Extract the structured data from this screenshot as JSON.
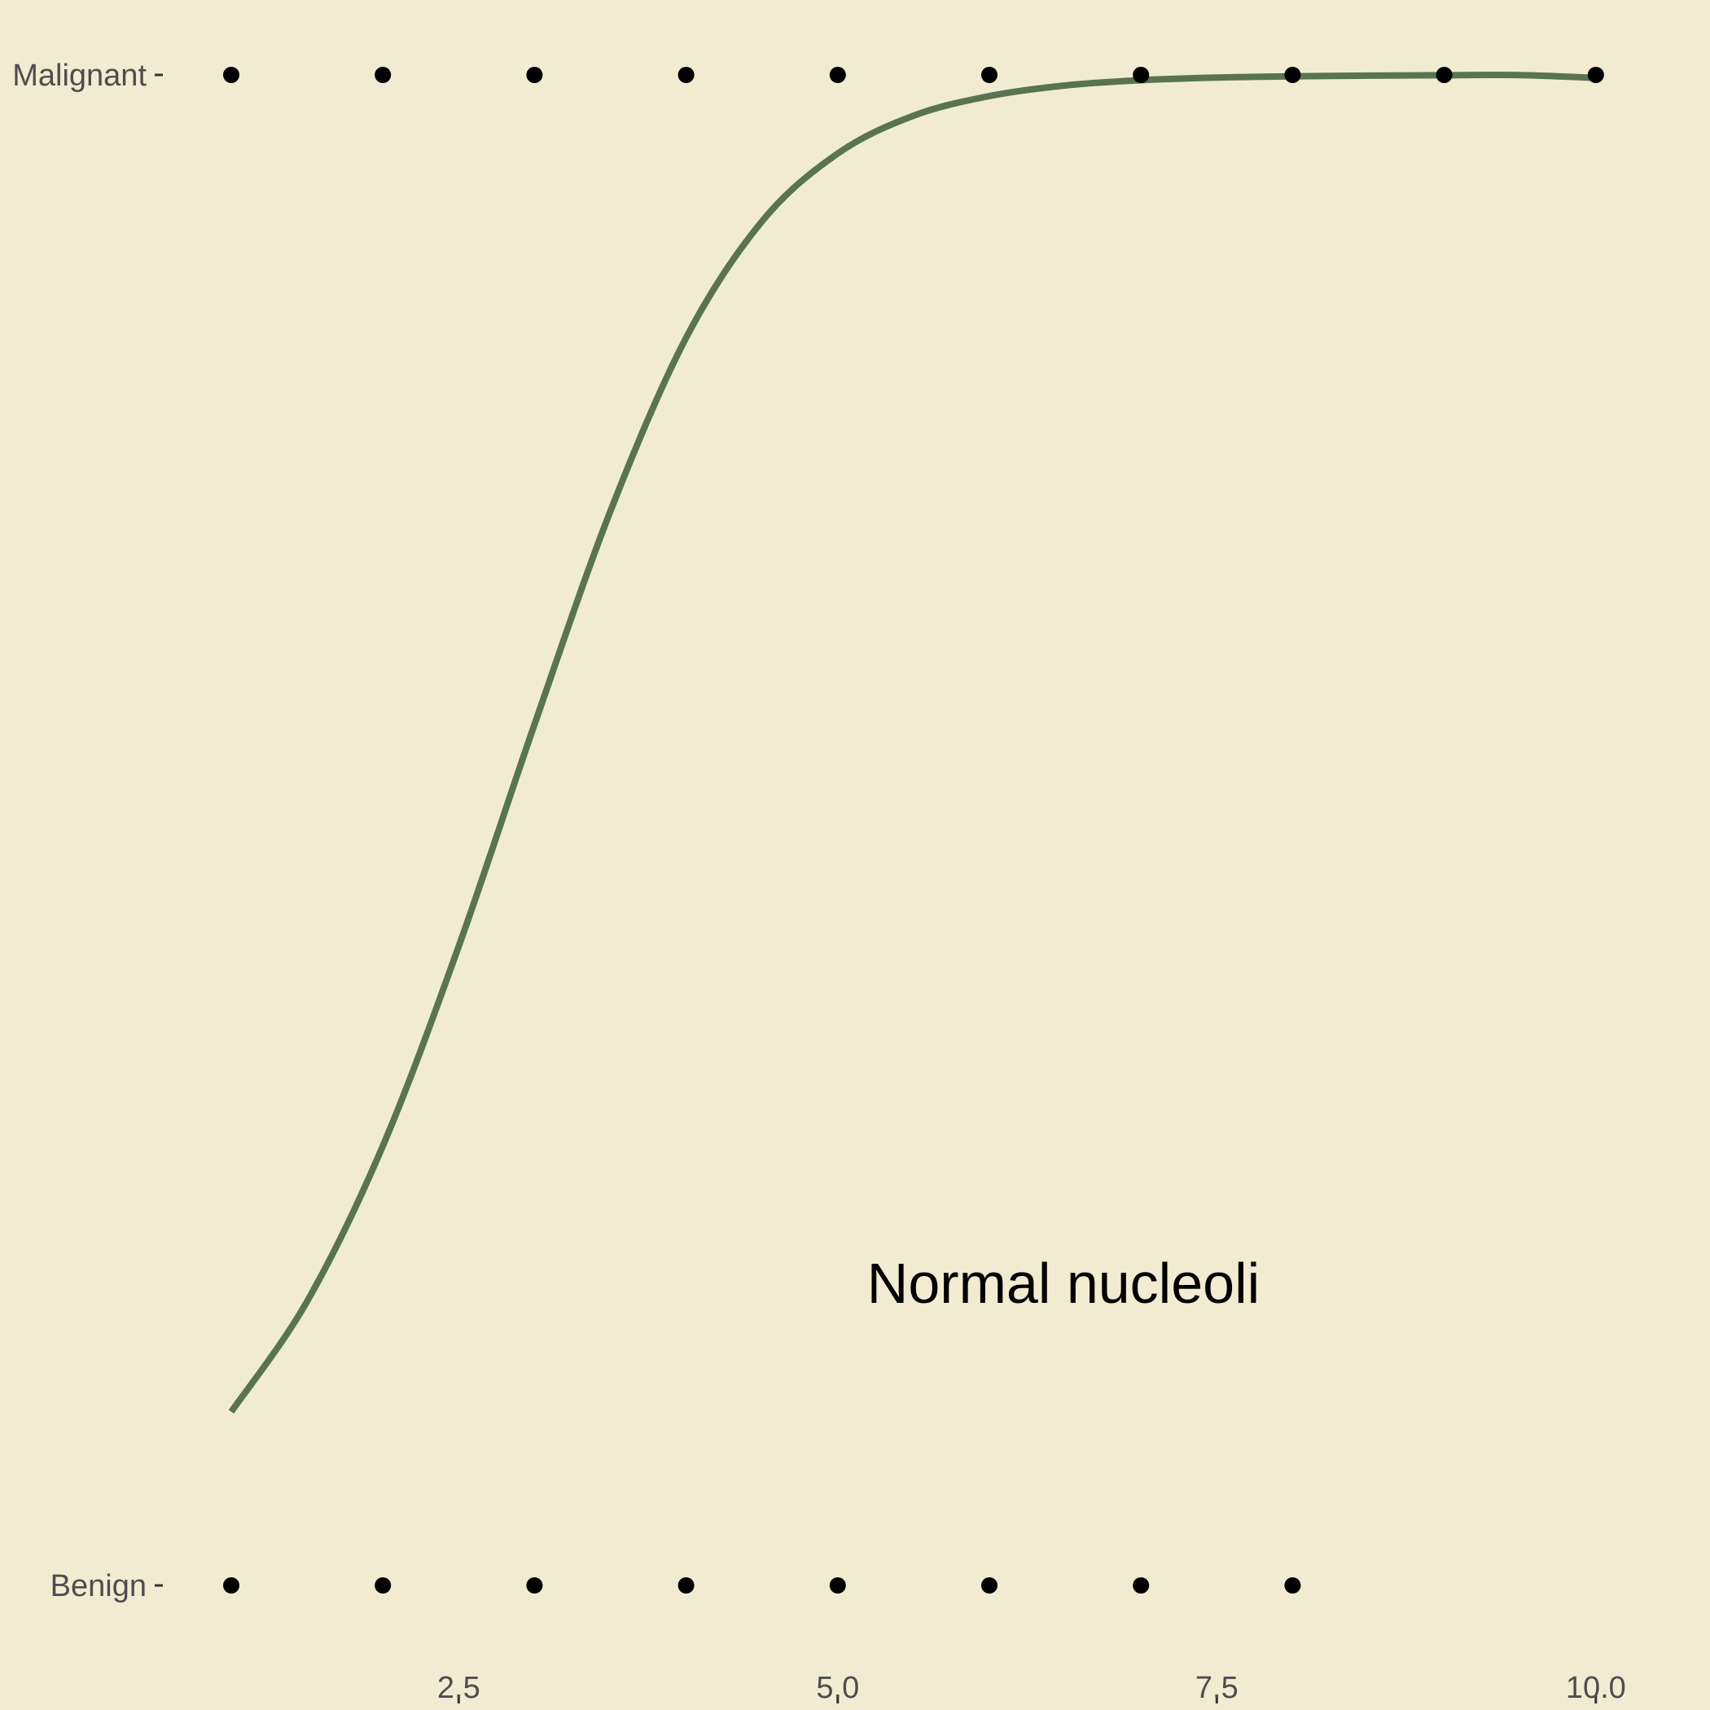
{
  "chart_data": {
    "type": "scatter",
    "title": "",
    "xlabel": "",
    "ylabel": "",
    "xlim": [
      0.6,
      10.5
    ],
    "x_ticks": [
      2.5,
      5.0,
      7.5,
      10.0
    ],
    "x_tick_labels": [
      "2.5",
      "5.0",
      "7.5",
      "10.0"
    ],
    "y_categories": [
      "Benign",
      "Malignant"
    ],
    "points": [
      {
        "x": 1,
        "y": "Malignant"
      },
      {
        "x": 2,
        "y": "Malignant"
      },
      {
        "x": 3,
        "y": "Malignant"
      },
      {
        "x": 4,
        "y": "Malignant"
      },
      {
        "x": 5,
        "y": "Malignant"
      },
      {
        "x": 6,
        "y": "Malignant"
      },
      {
        "x": 7,
        "y": "Malignant"
      },
      {
        "x": 8,
        "y": "Malignant"
      },
      {
        "x": 9,
        "y": "Malignant"
      },
      {
        "x": 10,
        "y": "Malignant"
      },
      {
        "x": 1,
        "y": "Benign"
      },
      {
        "x": 2,
        "y": "Benign"
      },
      {
        "x": 3,
        "y": "Benign"
      },
      {
        "x": 4,
        "y": "Benign"
      },
      {
        "x": 5,
        "y": "Benign"
      },
      {
        "x": 6,
        "y": "Benign"
      },
      {
        "x": 7,
        "y": "Benign"
      },
      {
        "x": 8,
        "y": "Benign"
      }
    ],
    "curve": {
      "kind": "logistic",
      "x": [
        1,
        1.5,
        2,
        2.5,
        3,
        3.5,
        4,
        4.5,
        5,
        5.5,
        6,
        6.5,
        7,
        7.5,
        8,
        8.5,
        9,
        9.5,
        10
      ],
      "probability": [
        0.115,
        0.188,
        0.291,
        0.423,
        0.57,
        0.711,
        0.826,
        0.903,
        0.948,
        0.973,
        0.986,
        0.993,
        0.9965,
        0.9982,
        0.9991,
        0.9995,
        0.9998,
        0.9999,
        0.998
      ]
    },
    "annotation": "Normal nucleoli",
    "grid": false,
    "legend": "none",
    "colors": {
      "panel_background": "#f1ecd1",
      "curve": "#587451",
      "points": "#000000",
      "tick_text": "#4d4d4d"
    }
  }
}
